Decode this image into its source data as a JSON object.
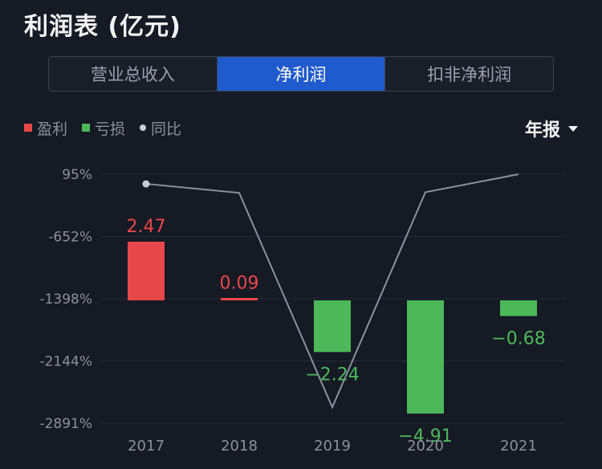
{
  "header": {
    "title": "利润表 (亿元)"
  },
  "tabs": [
    {
      "label": "营业总收入",
      "active": false
    },
    {
      "label": "净利润",
      "active": true
    },
    {
      "label": "扣非净利润",
      "active": false
    }
  ],
  "legend": {
    "profit": "盈利",
    "loss": "亏损",
    "yoy": "同比"
  },
  "period_selector": {
    "label": "年报"
  },
  "colors": {
    "profit": "#e8474a",
    "loss": "#4cb85a",
    "yoy_line": "#8c91a0",
    "axis_text": "#8b909b",
    "grid": "#262b38"
  },
  "chart_data": {
    "type": "bar",
    "categories": [
      "2017",
      "2018",
      "2019",
      "2020",
      "2021"
    ],
    "values": [
      2.47,
      0.09,
      -2.24,
      -4.91,
      -0.68
    ],
    "value_labels": [
      "2.47",
      "0.09",
      "−2.24",
      "−4.91",
      "−0.68"
    ],
    "yoy_percent": [
      -20,
      -128,
      -2700,
      -120,
      95
    ],
    "right_axis_ticks": [
      "95%",
      "-652%",
      "-1398%",
      "-2144%",
      "-2891%"
    ],
    "right_axis_values": [
      95,
      -652,
      -1398,
      -2144,
      -2891
    ],
    "ylim_value": [
      -4.91,
      2.6
    ],
    "ylim_percent": [
      -2891,
      95
    ],
    "title": "利润表 (亿元)",
    "legend_position": "top-left"
  }
}
